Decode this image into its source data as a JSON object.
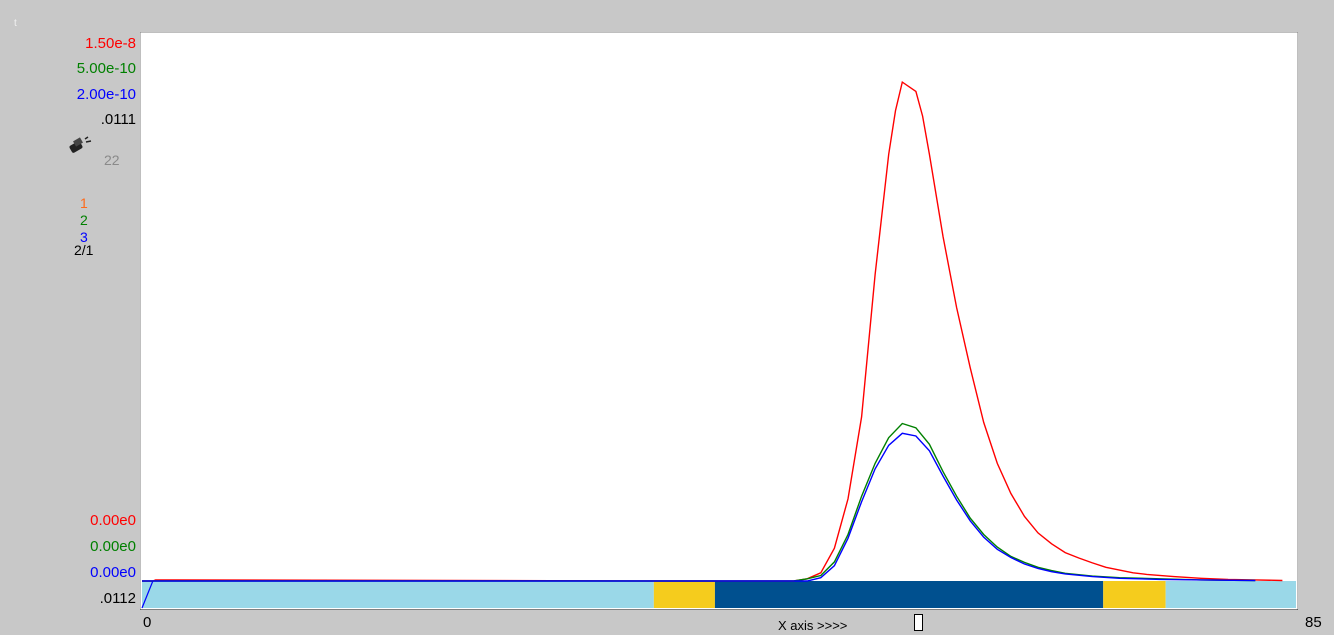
{
  "corner_mark": "t",
  "chart_data": {
    "type": "line",
    "x_range": [
      0,
      85
    ],
    "x_ticks": [
      "0",
      "85"
    ],
    "x_axis_label": "X axis  >>>>",
    "y_scales": [
      {
        "color": "#ff0000",
        "max_label": "1.50e-8",
        "min_label": "0.00e0"
      },
      {
        "color": "#008000",
        "max_label": "5.00e-10",
        "min_label": "0.00e0"
      },
      {
        "color": "#0000ff",
        "max_label": "2.00e-10",
        "min_label": "0.00e0"
      },
      {
        "color": "#000000",
        "max_label": ".0111",
        "min_label": ".0112"
      }
    ],
    "run_count": "22",
    "series_keys": [
      {
        "label": "1",
        "color": "#ff6a1a"
      },
      {
        "label": "2",
        "color": "#008000"
      },
      {
        "label": "3",
        "color": "#0000ff"
      },
      {
        "label": "2/1",
        "color": "#000000"
      }
    ],
    "series": [
      {
        "name": "1",
        "color": "#ff0000",
        "points": [
          [
            0,
            0
          ],
          [
            0.8,
            0
          ],
          [
            1,
            0.002
          ],
          [
            2.5,
            0.002
          ],
          [
            40,
            0
          ],
          [
            48,
            0
          ],
          [
            49,
            0.004
          ],
          [
            50,
            0.015
          ],
          [
            51,
            0.06
          ],
          [
            52,
            0.15
          ],
          [
            53,
            0.3
          ],
          [
            54,
            0.56
          ],
          [
            55,
            0.78
          ],
          [
            55.5,
            0.86
          ],
          [
            56,
            0.912
          ],
          [
            57,
            0.895
          ],
          [
            57.5,
            0.85
          ],
          [
            58,
            0.78
          ],
          [
            59,
            0.63
          ],
          [
            60,
            0.5
          ],
          [
            61,
            0.39
          ],
          [
            62,
            0.29
          ],
          [
            63,
            0.215
          ],
          [
            64,
            0.16
          ],
          [
            65,
            0.118
          ],
          [
            66,
            0.088
          ],
          [
            67,
            0.068
          ],
          [
            68,
            0.052
          ],
          [
            69,
            0.042
          ],
          [
            70,
            0.033
          ],
          [
            71,
            0.025
          ],
          [
            72,
            0.02
          ],
          [
            73,
            0.015
          ],
          [
            74,
            0.012
          ],
          [
            76,
            0.008
          ],
          [
            78,
            0.005
          ],
          [
            80,
            0.003
          ],
          [
            82,
            0.002
          ],
          [
            84,
            0.001
          ]
        ]
      },
      {
        "name": "2",
        "color": "#008000",
        "points": [
          [
            0,
            0
          ],
          [
            0.8,
            0
          ],
          [
            48,
            0
          ],
          [
            49,
            0.004
          ],
          [
            50,
            0.01
          ],
          [
            51,
            0.035
          ],
          [
            52,
            0.085
          ],
          [
            53,
            0.155
          ],
          [
            54,
            0.215
          ],
          [
            55,
            0.262
          ],
          [
            56,
            0.288
          ],
          [
            57,
            0.28
          ],
          [
            58,
            0.25
          ],
          [
            59,
            0.2
          ],
          [
            60,
            0.155
          ],
          [
            61,
            0.115
          ],
          [
            62,
            0.085
          ],
          [
            63,
            0.062
          ],
          [
            64,
            0.045
          ],
          [
            65,
            0.034
          ],
          [
            66,
            0.025
          ],
          [
            67,
            0.019
          ],
          [
            68,
            0.014
          ],
          [
            70,
            0.009
          ],
          [
            72,
            0.006
          ],
          [
            75,
            0.004
          ],
          [
            78,
            0.002
          ],
          [
            82,
            0.001
          ]
        ]
      },
      {
        "name": "3",
        "color": "#0000ff",
        "points": [
          [
            0,
            0
          ],
          [
            0.8,
            0
          ],
          [
            49,
            0
          ],
          [
            50,
            0.006
          ],
          [
            51,
            0.028
          ],
          [
            52,
            0.078
          ],
          [
            53,
            0.145
          ],
          [
            54,
            0.205
          ],
          [
            55,
            0.248
          ],
          [
            56,
            0.27
          ],
          [
            57,
            0.265
          ],
          [
            58,
            0.238
          ],
          [
            59,
            0.192
          ],
          [
            60,
            0.148
          ],
          [
            61,
            0.11
          ],
          [
            62,
            0.08
          ],
          [
            63,
            0.058
          ],
          [
            64,
            0.043
          ],
          [
            65,
            0.031
          ],
          [
            66,
            0.023
          ],
          [
            67,
            0.017
          ],
          [
            68,
            0.013
          ],
          [
            70,
            0.008
          ],
          [
            72,
            0.005
          ],
          [
            75,
            0.003
          ],
          [
            78,
            0.002
          ],
          [
            82,
            0.001
          ]
        ]
      }
    ],
    "color_bands": [
      {
        "from": 0,
        "to": 37.7,
        "color": "#9ad8e8"
      },
      {
        "from": 37.7,
        "to": 42.2,
        "color": "#f5cc1d"
      },
      {
        "from": 42.2,
        "to": 70.8,
        "color": "#00508f"
      },
      {
        "from": 70.8,
        "to": 75.4,
        "color": "#f5cc1d"
      },
      {
        "from": 75.4,
        "to": 85,
        "color": "#9ad8e8"
      }
    ]
  }
}
